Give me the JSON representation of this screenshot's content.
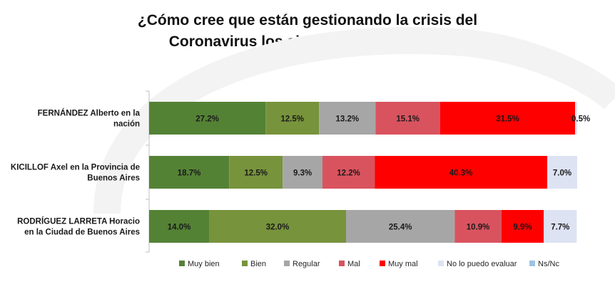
{
  "title_lines": [
    "¿Cómo cree que están gestionando la crisis del",
    "Coronavirus los siguientes dirigentes?"
  ],
  "chart_data": {
    "type": "bar",
    "orientation": "horizontal",
    "stacked": true,
    "normalized_percent": true,
    "title": "¿Cómo cree que están gestionando la crisis del Coronavirus los siguientes dirigentes?",
    "categories": [
      [
        "FERNÁNDEZ Alberto en la",
        "nación"
      ],
      [
        "KICILLOF Axel en la Provincia de",
        "Buenos Aires"
      ],
      [
        "RODRÍGUEZ LARRETA Horacio",
        "en la Ciudad de Buenos Aires"
      ]
    ],
    "series": [
      {
        "name": "Muy bien",
        "color": "#548235",
        "values": [
          27.2,
          18.7,
          14.0
        ],
        "labels": [
          "27.2%",
          "18.7%",
          "14.0%"
        ]
      },
      {
        "name": "Bien",
        "color": "#77933c",
        "values": [
          12.5,
          12.5,
          32.0
        ],
        "labels": [
          "12.5%",
          "12.5%",
          "32.0%"
        ]
      },
      {
        "name": "Regular",
        "color": "#a6a6a6",
        "values": [
          13.2,
          9.3,
          25.4
        ],
        "labels": [
          "13.2%",
          "9.3%",
          "25.4%"
        ]
      },
      {
        "name": "Mal",
        "color": "#d9535f",
        "values": [
          15.1,
          12.2,
          10.9
        ],
        "labels": [
          "15.1%",
          "12.2%",
          "10.9%"
        ]
      },
      {
        "name": "Muy mal",
        "color": "#ff0000",
        "values": [
          31.5,
          40.3,
          9.9
        ],
        "labels": [
          "31.5%",
          "40.3%",
          "9.9%"
        ]
      },
      {
        "name": "No lo puedo evaluar",
        "color": "#dde3f3",
        "values": [
          0.5,
          7.0,
          7.7
        ],
        "labels": [
          "0.5%",
          "7.0%",
          "7.7%"
        ]
      },
      {
        "name": "Ns/Nc",
        "color": "#9dc3e6",
        "values": [
          0,
          0,
          0
        ],
        "labels": [
          "",
          "",
          ""
        ]
      }
    ],
    "legend_position": "bottom",
    "grid": false
  }
}
